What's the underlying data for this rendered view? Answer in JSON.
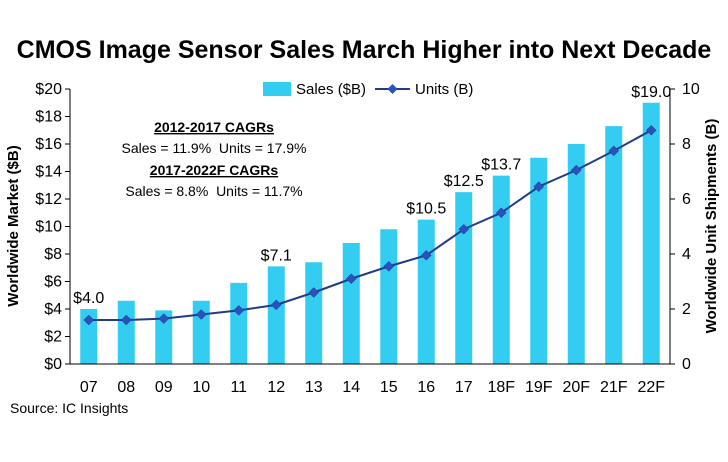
{
  "chart_data": {
    "type": "bar",
    "title": "CMOS Image Sensor Sales March Higher into Next Decade",
    "categories": [
      "07",
      "08",
      "09",
      "10",
      "11",
      "12",
      "13",
      "14",
      "15",
      "16",
      "17",
      "18F",
      "19F",
      "20F",
      "21F",
      "22F"
    ],
    "series": [
      {
        "name": "Sales ($B)",
        "kind": "bar",
        "axis": "left",
        "values": [
          4.0,
          4.6,
          3.9,
          4.6,
          5.9,
          7.1,
          7.4,
          8.8,
          9.8,
          10.5,
          12.5,
          13.7,
          15.0,
          16.0,
          17.3,
          19.0
        ]
      },
      {
        "name": "Units (B)",
        "kind": "line",
        "axis": "right",
        "values": [
          1.6,
          1.6,
          1.65,
          1.8,
          1.95,
          2.15,
          2.6,
          3.1,
          3.55,
          3.95,
          4.9,
          5.5,
          6.45,
          7.05,
          7.75,
          8.5
        ]
      }
    ],
    "data_labels": [
      {
        "category": "07",
        "text": "$4.0"
      },
      {
        "category": "12",
        "text": "$7.1"
      },
      {
        "category": "16",
        "text": "$10.5"
      },
      {
        "category": "17",
        "text": "$12.5"
      },
      {
        "category": "18F",
        "text": "$13.7"
      },
      {
        "category": "22F",
        "text": "$19.0"
      }
    ],
    "ylabel": "Worldwide Market ($B)",
    "y2label": "Worldwide Unit Shipments (B)",
    "ylim": [
      0,
      20
    ],
    "y2lim": [
      0,
      10
    ],
    "yticks": [
      "$0",
      "$2",
      "$4",
      "$6",
      "$8",
      "$10",
      "$12",
      "$14",
      "$16",
      "$18",
      "$20"
    ],
    "y2ticks": [
      "0",
      "2",
      "4",
      "6",
      "8",
      "10"
    ],
    "legend_placement": "top-center",
    "grid": false,
    "annotations": {
      "head1": "2012-2017 CAGRs",
      "line1": "Sales = 11.9%  Units = 17.9%",
      "head2": "2017-2022F CAGRs",
      "line2": "Sales = 8.8%  Units = 11.7%"
    },
    "source": "Source: IC Insights",
    "colors": {
      "bar": "#33cdf2",
      "line": "#1f3c88",
      "marker": "#2a52be"
    }
  }
}
